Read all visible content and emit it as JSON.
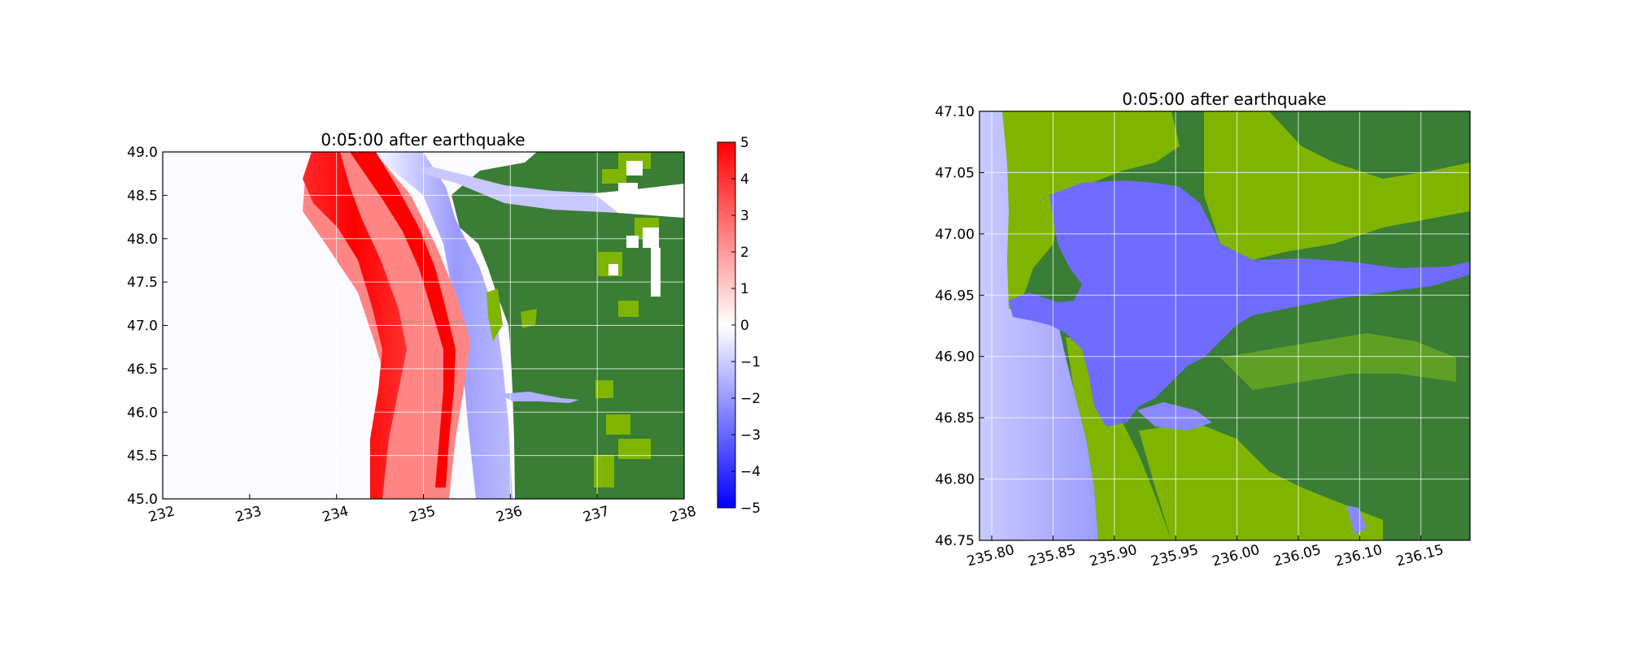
{
  "chart_data": [
    {
      "type": "heatmap",
      "title": "0:05:00 after earthquake",
      "xlabel": "",
      "ylabel": "",
      "xlim": [
        232,
        238
      ],
      "ylim": [
        45.0,
        49.0
      ],
      "xticks": [
        "232",
        "233",
        "234",
        "235",
        "236",
        "237",
        "238"
      ],
      "yticks": [
        "45.0",
        "45.5",
        "46.0",
        "46.5",
        "47.0",
        "47.5",
        "48.0",
        "48.5",
        "49.0"
      ],
      "grid": true,
      "colorbar": {
        "range": [
          -5,
          5
        ],
        "ticks": [
          "5",
          "4",
          "3",
          "2",
          "1",
          "0",
          "−1",
          "−2",
          "−3",
          "−4",
          "−5"
        ],
        "colors": {
          "low": "#0000ff",
          "mid": "#ffffff",
          "high": "#ff0000"
        }
      },
      "land_colors": {
        "low": "#7fb500",
        "high": "#3a7d35"
      }
    },
    {
      "type": "heatmap",
      "title": "0:05:00 after earthquake",
      "xlabel": "",
      "ylabel": "",
      "xlim": [
        235.79,
        236.19
      ],
      "ylim": [
        46.75,
        47.1
      ],
      "xticks": [
        "235.80",
        "235.85",
        "235.90",
        "235.95",
        "236.00",
        "236.05",
        "236.10",
        "236.15"
      ],
      "yticks": [
        "46.75",
        "46.80",
        "46.85",
        "46.90",
        "46.95",
        "47.00",
        "47.05",
        "47.10"
      ],
      "grid": true,
      "water_color": "#6f6cff",
      "land_colors": {
        "low": "#7fb500",
        "high": "#3a7d35"
      }
    }
  ]
}
